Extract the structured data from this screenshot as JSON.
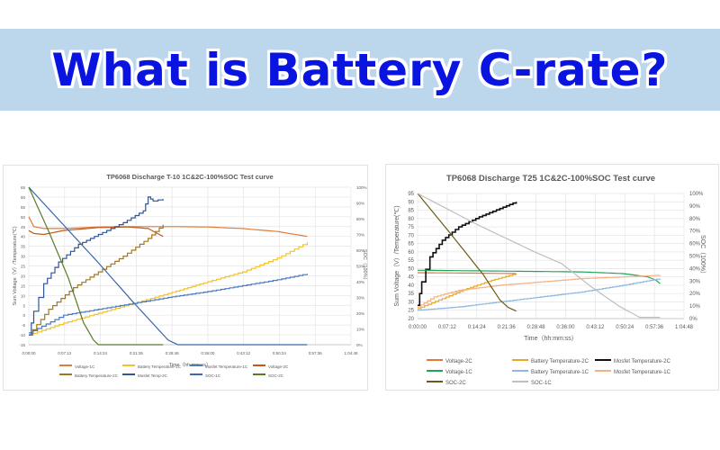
{
  "banner": {
    "title": "What is Battery C-rate?",
    "background": "#bcd7ec",
    "text_color": "#0a14e0"
  },
  "chart_data": [
    {
      "type": "line",
      "title": "TP6068  Discharge T-10 1C&2C-100%SOC  Test curve",
      "xlabel": "Time（hh:mm:ss）",
      "ylabel": "Sum Voltage（V）/Temperature(℃)",
      "y2label": "SOC（100%）",
      "x_ticks": [
        "0:00:00",
        "0:07:12",
        "0:14:24",
        "0:21:36",
        "0:28:48",
        "0:36:00",
        "0:43:12",
        "0:50:24",
        "0:57:36",
        "1:04:48"
      ],
      "y_ticks": [
        65,
        60,
        55,
        50,
        45,
        40,
        35,
        30,
        25,
        20,
        15,
        10,
        5,
        0,
        -5,
        -10,
        -15
      ],
      "y2_ticks": [
        "100%",
        "90%",
        "80%",
        "70%",
        "60%",
        "50%",
        "40%",
        "30%",
        "20%",
        "10%",
        "0%"
      ],
      "ylim": [
        -15,
        65
      ],
      "y2lim": [
        0,
        100
      ],
      "xlim_minutes": [
        0,
        64.8
      ],
      "grid": true,
      "legend_position": "bottom",
      "legend": [
        "Voltage-1C",
        "Battery Temperature-1C",
        "Mosfet Temperature-1C",
        "Voltage-2C",
        "Battery Temperature-2C",
        "Mosfet Temp-2C",
        "SOC-1C",
        "SOC-2C"
      ],
      "series": [
        {
          "name": "Voltage-1C",
          "color": "#e07b39",
          "axis": "y",
          "x_min": [
            0,
            1,
            3,
            7,
            14,
            22,
            29,
            36,
            43,
            50,
            56
          ],
          "values": [
            50,
            45,
            44,
            44,
            44.8,
            45,
            45,
            44.8,
            44,
            42.5,
            40
          ]
        },
        {
          "name": "Voltage-2C",
          "color": "#c05a1c",
          "axis": "y",
          "x_min": [
            0,
            1,
            3,
            7,
            14,
            20,
            24,
            27
          ],
          "values": [
            43,
            41.5,
            41,
            43,
            44.5,
            44.8,
            44,
            40
          ]
        },
        {
          "name": "Battery Temperature-1C",
          "color": "#f2c230",
          "axis": "y",
          "x_min": [
            0,
            7,
            14,
            21,
            28,
            36,
            43,
            50,
            56
          ],
          "values": [
            -10,
            -4,
            1,
            6,
            11,
            17,
            22,
            29,
            37
          ]
        },
        {
          "name": "Battery Temperature-2C",
          "color": "#a07820",
          "axis": "y",
          "x_min": [
            0,
            4,
            9,
            14,
            19,
            24,
            27
          ],
          "values": [
            -10,
            3,
            14,
            22,
            30,
            39,
            46
          ]
        },
        {
          "name": "Mosfet Temperature-1C",
          "color": "#4a7bbf",
          "axis": "y",
          "x_min": [
            0,
            7,
            14,
            21,
            28,
            36,
            43,
            50,
            56
          ],
          "values": [
            -9,
            0,
            3,
            6,
            9,
            12,
            15,
            18,
            21
          ]
        },
        {
          "name": "Mosfet Temp-2C",
          "color": "#2f5597",
          "axis": "y",
          "x_min": [
            0,
            1,
            3,
            6,
            10,
            14,
            19,
            23,
            24,
            25,
            27
          ],
          "values": [
            -10,
            2,
            16,
            27,
            36,
            41,
            47,
            53,
            60,
            58,
            59
          ]
        },
        {
          "name": "SOC-1C",
          "color": "#3a68a8",
          "axis": "y2",
          "x_min": [
            0,
            7,
            14,
            21,
            28,
            30,
            56
          ],
          "values": [
            100,
            76,
            52,
            27,
            3,
            0,
            0
          ]
        },
        {
          "name": "SOC-2C",
          "color": "#5a7a2a",
          "axis": "y2",
          "x_min": [
            0,
            4,
            8,
            11,
            13,
            14,
            27
          ],
          "values": [
            100,
            72,
            42,
            14,
            3,
            0,
            0
          ]
        }
      ]
    },
    {
      "type": "line",
      "title": "TP6068  Discharge T25 1C&2C-100%SOC  Test   curve",
      "xlabel": "Time（hh:mm:ss）",
      "ylabel": "Sum Voltage（V）/Temperature(℃)",
      "y2label": "SOC（100%）",
      "x_ticks": [
        "0:00:00",
        "0:07:12",
        "0:14:24",
        "0:21:36",
        "0:28:48",
        "0:36:00",
        "0:43:12",
        "0:50:24",
        "0:57:36",
        "1:04:48"
      ],
      "y_ticks": [
        95,
        90,
        85,
        80,
        75,
        70,
        65,
        60,
        55,
        50,
        45,
        40,
        35,
        30,
        25,
        20
      ],
      "y2_ticks": [
        "100%",
        "90%",
        "80%",
        "70%",
        "60%",
        "50%",
        "40%",
        "30%",
        "20%",
        "10%",
        "0%"
      ],
      "ylim": [
        20,
        95
      ],
      "y2lim": [
        0,
        100
      ],
      "xlim_minutes": [
        0,
        64.8
      ],
      "grid": true,
      "legend_position": "bottom",
      "legend": [
        "Voltage-2C",
        "Battery Temperature-2C",
        "Mosfet Temperature-2C",
        "Voltage-1C",
        "Battery Temperature-1C",
        "Mosfet Temperature-1C",
        "SOC-2C",
        "SOC-1C"
      ],
      "series": [
        {
          "name": "Voltage-2C",
          "color": "#e07b39",
          "axis": "y",
          "x_min": [
            0,
            12,
            24
          ],
          "values": [
            47.5,
            47.3,
            47
          ]
        },
        {
          "name": "Battery Temperature-2C",
          "color": "#e8a92a",
          "axis": "y",
          "x_min": [
            0,
            6,
            12,
            18,
            24
          ],
          "values": [
            26,
            32,
            38,
            43,
            47
          ]
        },
        {
          "name": "Mosfet Temperature-2C",
          "color": "#111111",
          "axis": "y",
          "x_min": [
            0,
            1,
            3,
            6,
            10,
            15,
            20,
            24
          ],
          "values": [
            28,
            42,
            57,
            67,
            75,
            81,
            86,
            90
          ]
        },
        {
          "name": "Voltage-1C",
          "color": "#1fa55a",
          "axis": "y",
          "x_min": [
            0,
            20,
            40,
            50,
            56,
            58,
            59
          ],
          "values": [
            49,
            48.5,
            48,
            47,
            45,
            43,
            41
          ]
        },
        {
          "name": "Battery Temperature-1C",
          "color": "#8fb7e0",
          "axis": "y",
          "x_min": [
            0,
            10,
            20,
            30,
            40,
            50,
            59
          ],
          "values": [
            25,
            27,
            30,
            33,
            36,
            40,
            44
          ]
        },
        {
          "name": "Mosfet Temperature-1C",
          "color": "#f4b183",
          "axis": "y",
          "x_min": [
            0,
            4,
            10,
            20,
            30,
            40,
            50,
            59
          ],
          "values": [
            27,
            33,
            37,
            40,
            42,
            44,
            45,
            46
          ]
        },
        {
          "name": "SOC-2C",
          "color": "#6b5a1a",
          "axis": "y2",
          "x_min": [
            0,
            8,
            16,
            20,
            22,
            24
          ],
          "values": [
            100,
            68,
            35,
            15,
            9,
            6
          ]
        },
        {
          "name": "SOC-1C",
          "color": "#bfbfbf",
          "axis": "y2",
          "x_min": [
            0,
            14,
            28,
            35,
            42,
            49,
            54,
            59
          ],
          "values": [
            100,
            76,
            54,
            44,
            26,
            10,
            1,
            1
          ]
        }
      ]
    }
  ]
}
